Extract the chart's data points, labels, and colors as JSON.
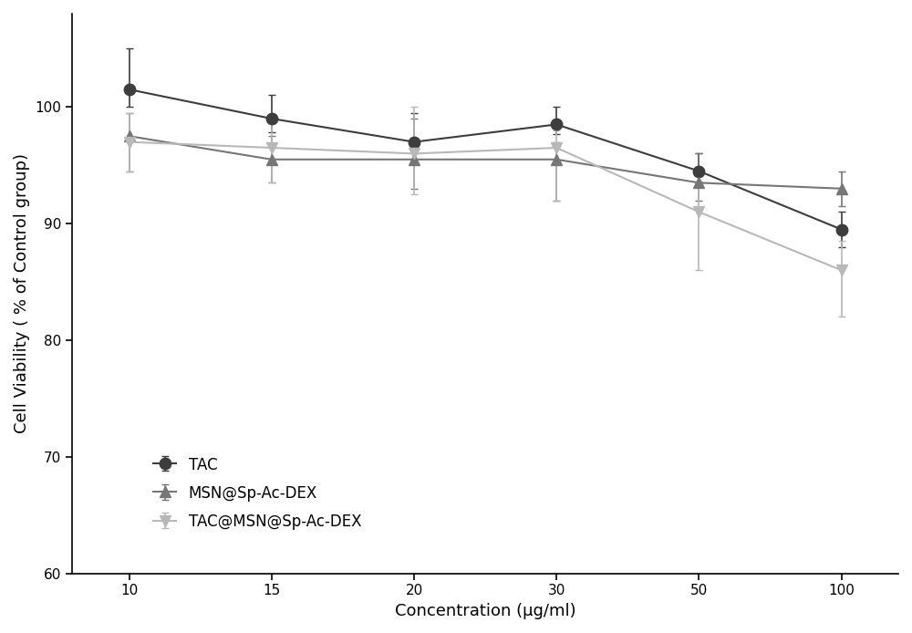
{
  "x": [
    10,
    15,
    20,
    30,
    50,
    100
  ],
  "x_positions": [
    0,
    1,
    2,
    3,
    4,
    5
  ],
  "series": [
    {
      "label": "TAC",
      "color": "#3d3d3d",
      "marker": "o",
      "markersize": 9,
      "linewidth": 1.5,
      "y": [
        101.5,
        99.0,
        97.0,
        98.5,
        94.5,
        89.5
      ],
      "yerr_lo": [
        1.5,
        1.2,
        1.5,
        0.8,
        1.0,
        1.5
      ],
      "yerr_hi": [
        3.5,
        2.0,
        2.5,
        1.5,
        1.5,
        1.5
      ]
    },
    {
      "label": "MSN@Sp-Ac-DEX",
      "color": "#767676",
      "marker": "^",
      "markersize": 8,
      "linewidth": 1.5,
      "y": [
        97.5,
        95.5,
        95.5,
        95.5,
        93.5,
        93.0
      ],
      "yerr_lo": [
        3.0,
        2.0,
        2.5,
        3.5,
        1.5,
        1.5
      ],
      "yerr_hi": [
        2.0,
        2.0,
        3.5,
        1.5,
        2.5,
        1.5
      ]
    },
    {
      "label": "TAC@MSN@Sp-Ac-DEX",
      "color": "#b8b8b8",
      "marker": "v",
      "markersize": 8,
      "linewidth": 1.5,
      "y": [
        97.0,
        96.5,
        96.0,
        96.5,
        91.0,
        86.0
      ],
      "yerr_lo": [
        2.5,
        3.0,
        3.5,
        4.5,
        5.0,
        4.0
      ],
      "yerr_hi": [
        2.5,
        2.5,
        4.0,
        1.5,
        2.5,
        2.5
      ]
    }
  ],
  "xlabel": "Concentration (μg/ml)",
  "ylabel": "Cell Viability ( % of Control group)",
  "ylim": [
    60,
    108
  ],
  "yticks": [
    60,
    70,
    80,
    90,
    100
  ],
  "xtick_labels": [
    "10",
    "15",
    "20",
    "30",
    "50",
    "100"
  ],
  "background_color": "#ffffff",
  "capsize": 3,
  "elinewidth": 1.2
}
